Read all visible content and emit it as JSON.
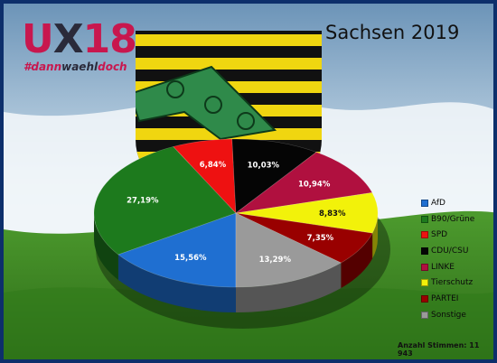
{
  "logo": {
    "u": "U",
    "x": "X",
    "num": "18",
    "hashtag_prefix": "#dann",
    "hashtag_mid": "waehl",
    "hashtag_suffix": "doch"
  },
  "chart_data": {
    "type": "pie",
    "title": "Sachsen 2019",
    "slices": [
      {
        "name": "AfD",
        "value": 15.56,
        "label": "15,56%",
        "color": "#1f6fd1"
      },
      {
        "name": "B90/Grüne",
        "value": 27.19,
        "label": "27,19%",
        "color": "#1d7a1d"
      },
      {
        "name": "SPD",
        "value": 6.84,
        "label": "6,84%",
        "color": "#ee1111"
      },
      {
        "name": "CDU/CSU",
        "value": 10.03,
        "label": "10,03%",
        "color": "#050505"
      },
      {
        "name": "LINKE",
        "value": 10.94,
        "label": "10,94%",
        "color": "#b0103f"
      },
      {
        "name": "Tierschutz",
        "value": 8.83,
        "label": "8,83%",
        "color": "#f2f20a"
      },
      {
        "name": "PARTEI",
        "value": 7.35,
        "label": "7,35%",
        "color": "#990000"
      },
      {
        "name": "Sonstige",
        "value": 13.29,
        "label": "13,29%",
        "color": "#9a9a9a"
      }
    ],
    "legend_position": "right",
    "footnote": "Anzahl Stimmen: 11 943"
  }
}
